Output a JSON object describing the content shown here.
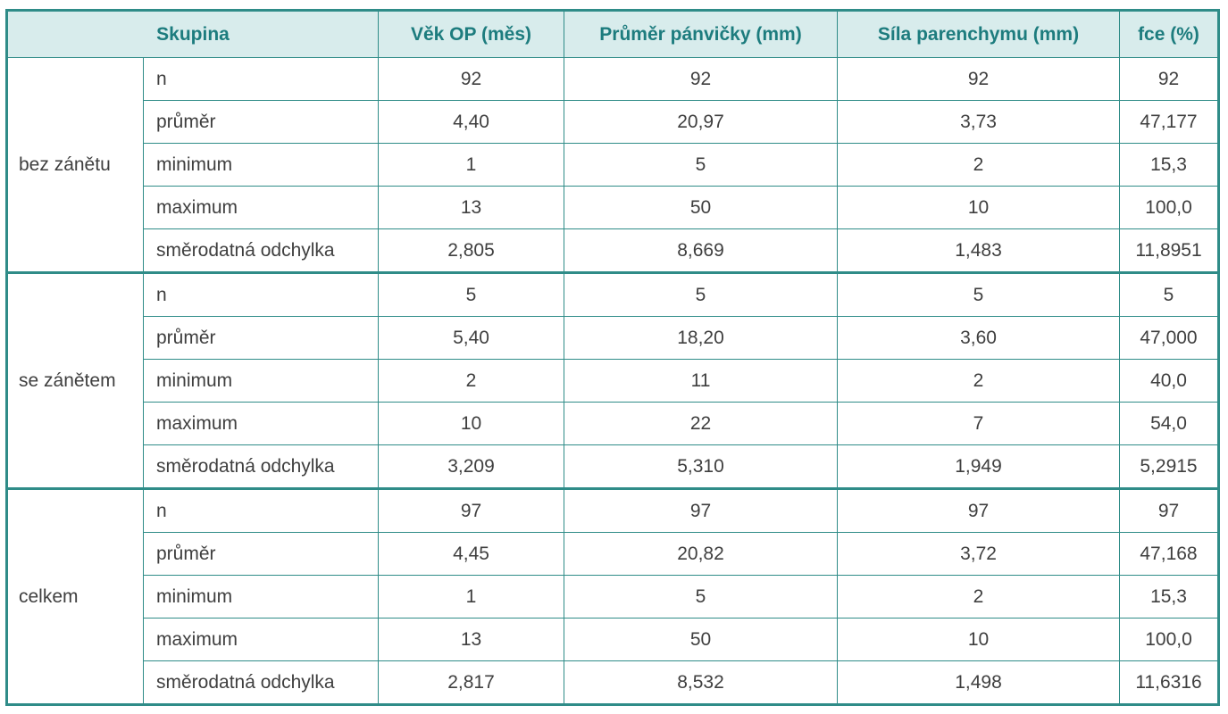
{
  "headers": [
    "Skupina",
    "Věk OP (měs)",
    "Průměr pánvičky (mm)",
    "Síla parenchymu (mm)",
    "fce (%)"
  ],
  "groups": [
    {
      "name": "bez zánětu",
      "rows": [
        {
          "stat": "n",
          "values": [
            "92",
            "92",
            "92",
            "92"
          ]
        },
        {
          "stat": "průměr",
          "values": [
            "4,40",
            "20,97",
            "3,73",
            "47,177"
          ]
        },
        {
          "stat": "minimum",
          "values": [
            "1",
            "5",
            "2",
            "15,3"
          ]
        },
        {
          "stat": "maximum",
          "values": [
            "13",
            "50",
            "10",
            "100,0"
          ]
        },
        {
          "stat": "směrodatná odchylka",
          "values": [
            "2,805",
            "8,669",
            "1,483",
            "11,8951"
          ]
        }
      ]
    },
    {
      "name": "se zánětem",
      "rows": [
        {
          "stat": "n",
          "values": [
            "5",
            "5",
            "5",
            "5"
          ]
        },
        {
          "stat": "průměr",
          "values": [
            "5,40",
            "18,20",
            "3,60",
            "47,000"
          ]
        },
        {
          "stat": "minimum",
          "values": [
            "2",
            "11",
            "2",
            "40,0"
          ]
        },
        {
          "stat": "maximum",
          "values": [
            "10",
            "22",
            "7",
            "54,0"
          ]
        },
        {
          "stat": "směrodatná odchylka",
          "values": [
            "3,209",
            "5,310",
            "1,949",
            "5,2915"
          ]
        }
      ]
    },
    {
      "name": "celkem",
      "rows": [
        {
          "stat": "n",
          "values": [
            "97",
            "97",
            "97",
            "97"
          ]
        },
        {
          "stat": "průměr",
          "values": [
            "4,45",
            "20,82",
            "3,72",
            "47,168"
          ]
        },
        {
          "stat": "minimum",
          "values": [
            "1",
            "5",
            "2",
            "15,3"
          ]
        },
        {
          "stat": "maximum",
          "values": [
            "13",
            "50",
            "10",
            "100,0"
          ]
        },
        {
          "stat": "směrodatná odchylka",
          "values": [
            "2,817",
            "8,532",
            "1,498",
            "11,6316"
          ]
        }
      ]
    }
  ],
  "colors": {
    "border": "#2f8c88",
    "header_bg": "#d8ecec",
    "header_text": "#1d7c7e",
    "body_text": "#3f3f3f"
  }
}
